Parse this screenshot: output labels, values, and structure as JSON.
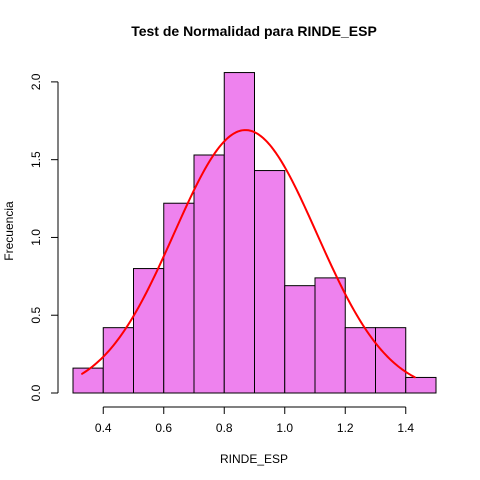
{
  "chart_data": {
    "type": "bar",
    "title": "Test de Normalidad para  RINDE_ESP",
    "xlabel": "RINDE_ESP",
    "ylabel": "Frecuencia",
    "xlim": [
      0.3,
      1.5
    ],
    "ylim": [
      0.0,
      2.07
    ],
    "x_ticks": [
      0.4,
      0.6,
      0.8,
      1.0,
      1.2,
      1.4
    ],
    "x_tick_labels": [
      "0.4",
      "0.6",
      "0.8",
      "1.0",
      "1.2",
      "1.4"
    ],
    "y_ticks": [
      0.0,
      0.5,
      1.0,
      1.5,
      2.0
    ],
    "y_tick_labels": [
      "0.0",
      "0.5",
      "1.0",
      "1.5",
      "2.0"
    ],
    "grid": false,
    "bins": [
      {
        "start": 0.3,
        "end": 0.4,
        "density": 0.16
      },
      {
        "start": 0.4,
        "end": 0.5,
        "density": 0.42
      },
      {
        "start": 0.5,
        "end": 0.6,
        "density": 0.8
      },
      {
        "start": 0.6,
        "end": 0.7,
        "density": 1.22
      },
      {
        "start": 0.7,
        "end": 0.8,
        "density": 1.53
      },
      {
        "start": 0.8,
        "end": 0.9,
        "density": 2.06
      },
      {
        "start": 0.9,
        "end": 1.0,
        "density": 1.43
      },
      {
        "start": 1.0,
        "end": 1.1,
        "density": 0.69
      },
      {
        "start": 1.1,
        "end": 1.2,
        "density": 0.74
      },
      {
        "start": 1.2,
        "end": 1.3,
        "density": 0.42
      },
      {
        "start": 1.3,
        "end": 1.4,
        "density": 0.42
      },
      {
        "start": 1.4,
        "end": 1.5,
        "density": 0.1
      }
    ],
    "normal_curve": {
      "mean": 0.87,
      "sd": 0.236,
      "x_from": 0.33,
      "x_to": 1.43
    },
    "colors": {
      "bar_fill": "#EE82EE",
      "bar_border": "#000000",
      "curve": "#FF0000",
      "axis": "#000000",
      "background": "#FFFFFF"
    }
  }
}
